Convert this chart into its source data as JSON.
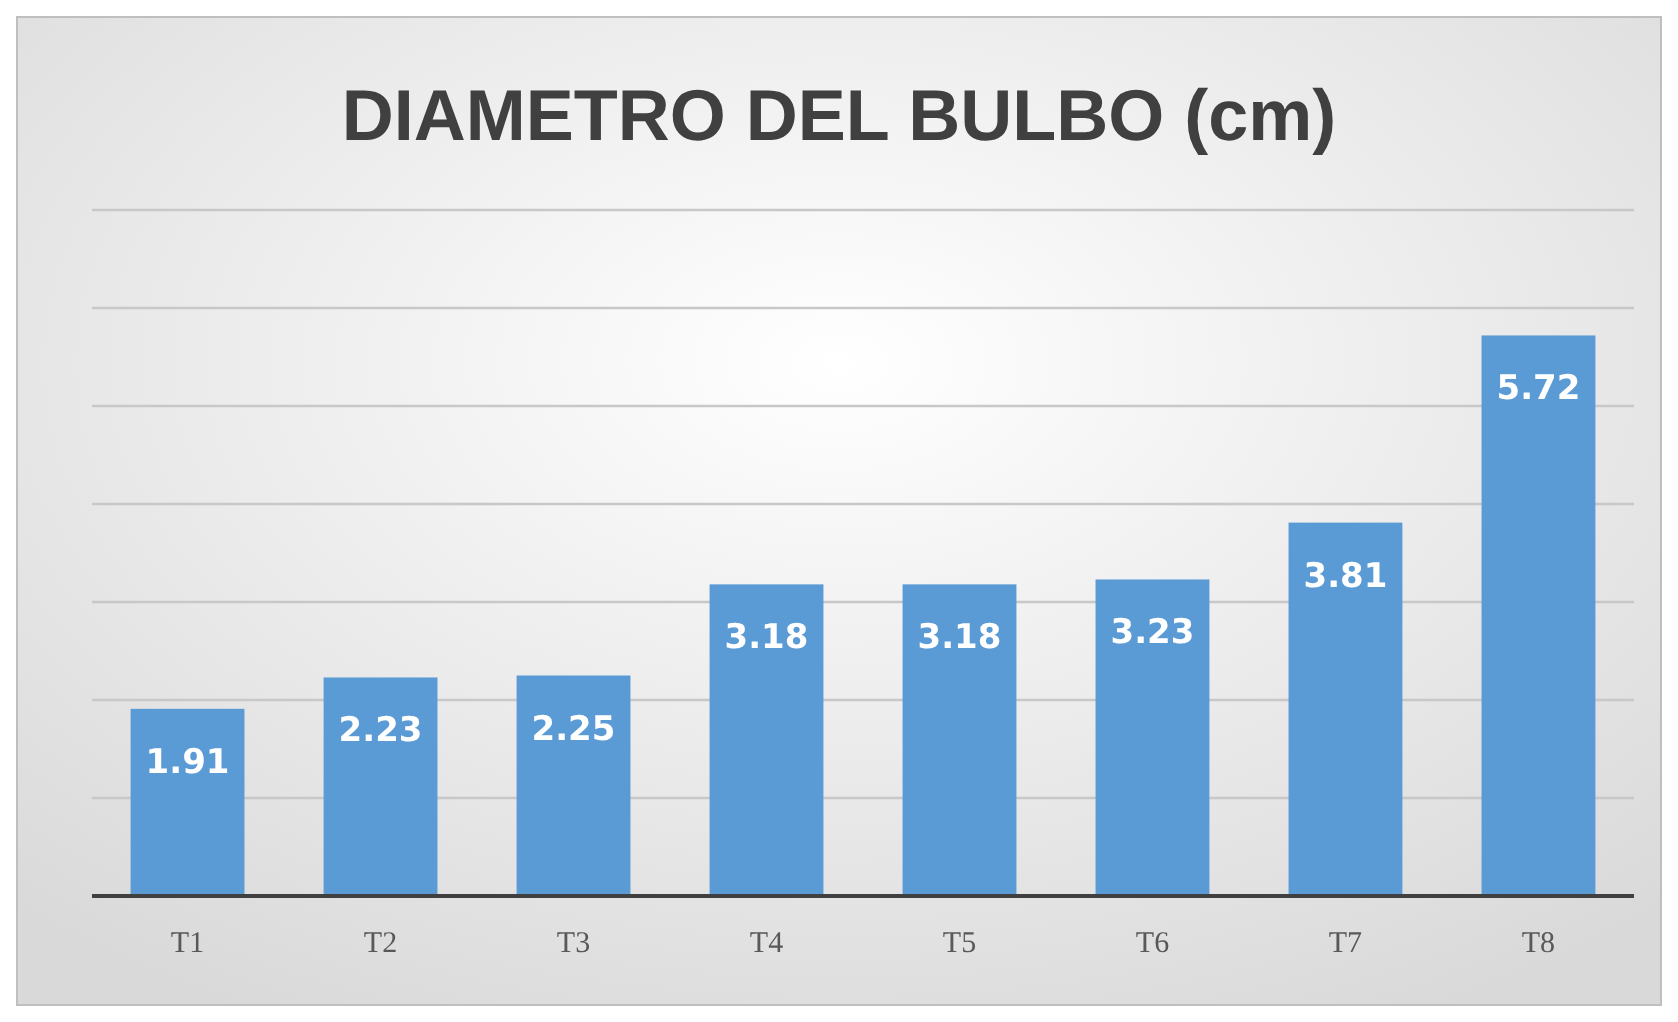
{
  "chart_data": {
    "type": "bar",
    "title": "DIAMETRO DEL BULBO (cm)",
    "categories": [
      "T1",
      "T2",
      "T3",
      "T4",
      "T5",
      "T6",
      "T7",
      "T8"
    ],
    "values": [
      1.91,
      2.23,
      2.25,
      3.18,
      3.18,
      3.23,
      3.81,
      5.72
    ],
    "color": "#5b9bd5",
    "ylim": [
      0,
      7
    ],
    "yticks": [
      {
        "value": 0,
        "label": null
      },
      {
        "value": 1,
        "label": null
      },
      {
        "value": 2,
        "label": null
      },
      {
        "value": 3,
        "label": null
      },
      {
        "value": 4,
        "label": null
      },
      {
        "value": 5,
        "label": null
      },
      {
        "value": 6,
        "label": null
      },
      {
        "value": 7,
        "label": null
      }
    ],
    "grid": "y",
    "tick_labels": "x",
    "data_labels": true
  }
}
